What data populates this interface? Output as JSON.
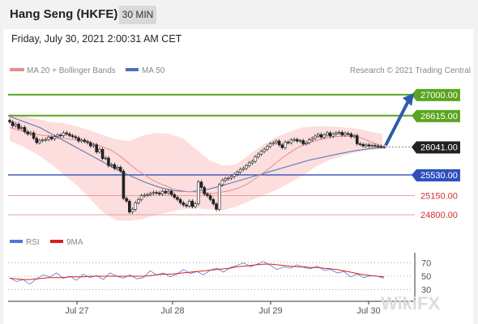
{
  "header": {
    "title": "Hang Seng (HKFE)",
    "period": "30 MIN",
    "datetime": "Friday, July 30, 2021 2:00:31 AM CET"
  },
  "legend": {
    "ma20_label": "MA 20 + Bollinger Bands",
    "ma50_label": "MA 50",
    "credit": "Research © 2021 Trading Central",
    "rsi_label": "RSI",
    "ma9_label": "9MA"
  },
  "colors": {
    "green_level": "#5aa51f",
    "blue_level": "#2f4fbf",
    "red_level": "#e8a0a0",
    "current": "#222222",
    "bollinger": "#fbd3d3",
    "ma20": "#e88b8b",
    "ma50": "#4e6fb5",
    "arrow": "#2a5ca8",
    "rsi": "#4d78d6",
    "rsi_ma": "#d62020",
    "candle_up": "#ffffff",
    "candle_down": "#222222"
  },
  "watermark": "WikiFX",
  "chart_data": [
    {
      "type": "candlestick",
      "title": "",
      "ylim": [
        24550,
        27250
      ],
      "x_ticks": [
        "Jul 27",
        "Jul 28",
        "Jul 29",
        "Jul 30"
      ],
      "levels": [
        {
          "value": 27000,
          "label": "27000.00",
          "kind": "resistance"
        },
        {
          "value": 26615,
          "label": "26615.00",
          "kind": "resistance"
        },
        {
          "value": 26041,
          "label": "26041.00",
          "kind": "current"
        },
        {
          "value": 25530,
          "label": "25530.00",
          "kind": "pivot"
        },
        {
          "value": 25150,
          "label": "25150.00",
          "kind": "support"
        },
        {
          "value": 24800,
          "label": "24800.00",
          "kind": "support"
        }
      ],
      "close": [
        26500,
        26430,
        26460,
        26380,
        26400,
        26320,
        26280,
        26300,
        26200,
        26120,
        26160,
        26170,
        26180,
        26220,
        26190,
        26230,
        26260,
        26250,
        26300,
        26280,
        26250,
        26230,
        26210,
        26150,
        26170,
        26140,
        26120,
        26060,
        26080,
        25950,
        26000,
        25830,
        25840,
        25700,
        25720,
        25650,
        25670,
        25600,
        25100,
        25050,
        24850,
        24900,
        25020,
        25080,
        25150,
        25160,
        25170,
        25190,
        25210,
        25200,
        25180,
        25230,
        25200,
        25230,
        25170,
        25120,
        25080,
        25020,
        24980,
        24960,
        25050,
        24950,
        25000,
        25400,
        25300,
        25180,
        25150,
        25080,
        25000,
        24900,
        25350,
        25430,
        25460,
        25470,
        25500,
        25540,
        25580,
        25630,
        25650,
        25700,
        25750,
        25780,
        25860,
        25910,
        25960,
        26000,
        26050,
        26100,
        26120,
        26150,
        26080,
        26030,
        26130,
        26120,
        26170,
        26180,
        26150,
        26160,
        26100,
        26120,
        26170,
        26200,
        26240,
        26270,
        26220,
        26260,
        26300,
        26240,
        26280,
        26300,
        26310,
        26260,
        26290,
        26280,
        26230,
        26250,
        26100,
        26090,
        26060,
        26080,
        26060,
        26070,
        26060,
        26050,
        26045,
        26041
      ],
      "ma20": [
        26400,
        26360,
        26330,
        26300,
        26270,
        26250,
        26240,
        26220,
        26200,
        26180,
        26170,
        26150,
        26120,
        26080,
        26030,
        25980,
        25900,
        25800,
        25700,
        25600,
        25520,
        25440,
        25380,
        25330,
        25280,
        25250,
        25230,
        25220,
        25210,
        25200,
        25190,
        25210,
        25230,
        25260,
        25300,
        25360,
        25440,
        25530,
        25620,
        25720,
        25820,
        25910,
        25990,
        26060,
        26110,
        26150,
        26180,
        26210,
        26230,
        26240,
        26240,
        26240,
        26200,
        26150,
        26100,
        26060
      ],
      "ma50": [
        26600,
        26500,
        26400,
        26250,
        26100,
        25950,
        25800,
        25650,
        25520,
        25400,
        25300,
        25240,
        25220,
        25250,
        25320,
        25400,
        25480,
        25560,
        25640,
        25720,
        25800,
        25860,
        25920,
        25970,
        26010,
        26041
      ],
      "bb_upper": [
        26650,
        26600,
        26560,
        26500,
        26480,
        26420,
        26350,
        26260,
        26180,
        26150,
        26250,
        26300,
        26280,
        26200,
        26000,
        25800,
        25700,
        25720,
        25900,
        26080,
        26220,
        26320,
        26400,
        26420,
        26420,
        26400,
        26380,
        26330,
        26280
      ],
      "bb_lower": [
        26150,
        26050,
        25920,
        25750,
        25550,
        25350,
        25100,
        24850,
        24700,
        24690,
        24720,
        24800,
        24850,
        24900,
        24920,
        24900,
        24880,
        24950,
        25050,
        25150,
        25250,
        25380,
        25520,
        25680,
        25800,
        25880,
        25940,
        25980,
        26000
      ]
    },
    {
      "type": "line",
      "title": "",
      "ylim": [
        15,
        85
      ],
      "y_ticks": [
        70,
        50,
        30
      ],
      "series": [
        {
          "name": "RSI",
          "values": [
            48,
            42,
            45,
            38,
            46,
            52,
            49,
            55,
            47,
            50,
            44,
            53,
            48,
            51,
            45,
            55,
            50,
            47,
            52,
            46,
            48,
            58,
            52,
            55,
            49,
            53,
            60,
            54,
            57,
            52,
            59,
            62,
            56,
            63,
            66,
            70,
            64,
            68,
            72,
            66,
            60,
            64,
            62,
            67,
            63,
            61,
            65,
            59,
            60,
            55,
            57,
            49,
            53,
            48,
            51,
            50,
            47
          ]
        },
        {
          "name": "9MA",
          "values": [
            47,
            46,
            45,
            45,
            46,
            47,
            48,
            48,
            48,
            49,
            49,
            49,
            50,
            50,
            50,
            50,
            50,
            50,
            50,
            50,
            50,
            51,
            52,
            53,
            53,
            54,
            55,
            56,
            57,
            58,
            59,
            60,
            61,
            62,
            64,
            65,
            66,
            67,
            68,
            68,
            67,
            66,
            65,
            64,
            64,
            63,
            63,
            62,
            61,
            60,
            58,
            56,
            54,
            52,
            51,
            50,
            49
          ]
        }
      ]
    }
  ]
}
